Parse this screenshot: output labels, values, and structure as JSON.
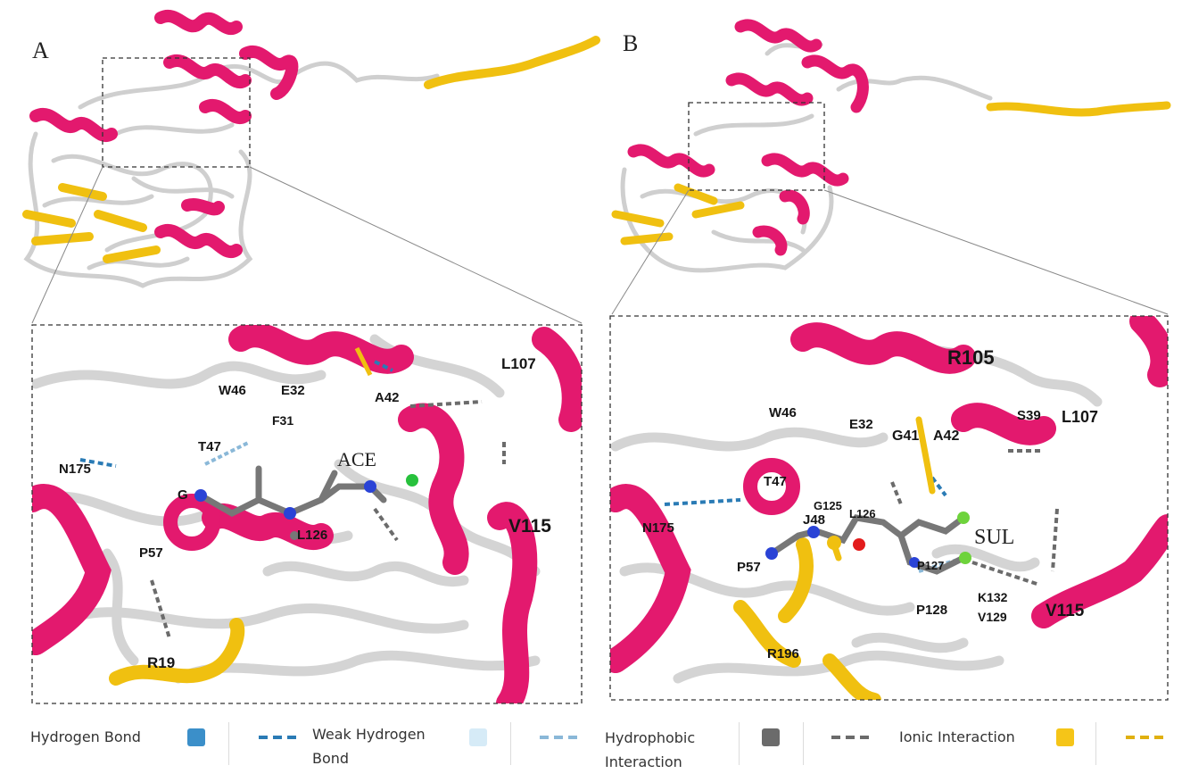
{
  "panels": [
    {
      "letter": "A",
      "ligand": "ACE",
      "residues": [
        "L107",
        "W46",
        "E32",
        "A42",
        "F31",
        "T47",
        "N175",
        "G",
        "L126",
        "V115",
        "P57",
        "R19"
      ]
    },
    {
      "letter": "B",
      "ligand": "SUL",
      "residues": [
        "R105",
        "L107",
        "W46",
        "E32",
        "S39",
        "G41",
        "A42",
        "T47",
        "N175",
        "G125",
        "L126",
        "J48",
        "P57",
        "P127",
        "K132",
        "P128",
        "V129",
        "V115",
        "R196"
      ]
    }
  ],
  "legend": [
    {
      "label_line1": "Hydrogen Bond",
      "label_line2": "",
      "swatch_color": "#3b8fc9",
      "dash_color": "#2a7bb5"
    },
    {
      "label_line1": "Weak Hydrogen",
      "label_line2": "Bond",
      "swatch_color": "#d6ebf7",
      "dash_color": "#8ab8d8"
    },
    {
      "label_line1": "Hydrophobic",
      "label_line2": "Interaction",
      "swatch_color": "#6b6b6b",
      "dash_color": "#6b6b6b"
    },
    {
      "label_line1": "Ionic Interaction",
      "label_line2": "",
      "swatch_color": "#f5c518",
      "dash_color": "#e0b010"
    }
  ],
  "colors": {
    "helix": "#e3196e",
    "sheet": "#f0c010",
    "coil": "#d9d9d9"
  }
}
